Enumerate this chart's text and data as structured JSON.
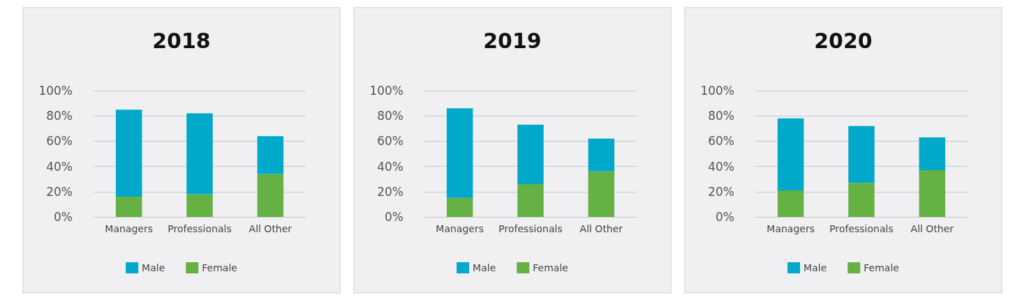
{
  "chart_data": [
    {
      "type": "bar",
      "title": "2018",
      "categories": [
        "Managers",
        "Professionals",
        "All Other"
      ],
      "stacked": true,
      "ylim": [
        0,
        100
      ],
      "yticks": [
        {
          "value": 0,
          "label": "0%"
        },
        {
          "value": 20,
          "label": "20%"
        },
        {
          "value": 40,
          "label": "40%"
        },
        {
          "value": 60,
          "label": "60%"
        },
        {
          "value": 80,
          "label": "80%"
        },
        {
          "value": 100,
          "label": "100%"
        }
      ],
      "grid": "y",
      "legend": "bottom",
      "series": [
        {
          "name": "Female",
          "color": "#65b144",
          "values": [
            16,
            18,
            34
          ]
        },
        {
          "name": "Male",
          "color": "#00a9c9",
          "values": [
            69,
            64,
            30
          ]
        }
      ]
    },
    {
      "type": "bar",
      "title": "2019",
      "categories": [
        "Managers",
        "Professionals",
        "All Other"
      ],
      "stacked": true,
      "ylim": [
        0,
        100
      ],
      "yticks": [
        {
          "value": 0,
          "label": "0%"
        },
        {
          "value": 20,
          "label": "20%"
        },
        {
          "value": 40,
          "label": "40%"
        },
        {
          "value": 60,
          "label": "60%"
        },
        {
          "value": 80,
          "label": "80%"
        },
        {
          "value": 100,
          "label": "100%"
        }
      ],
      "grid": "y",
      "legend": "bottom",
      "series": [
        {
          "name": "Female",
          "color": "#65b144",
          "values": [
            15,
            26,
            36
          ]
        },
        {
          "name": "Male",
          "color": "#00a9c9",
          "values": [
            71,
            47,
            26
          ]
        }
      ]
    },
    {
      "type": "bar",
      "title": "2020",
      "categories": [
        "Managers",
        "Professionals",
        "All Other"
      ],
      "stacked": true,
      "ylim": [
        0,
        100
      ],
      "yticks": [
        {
          "value": 0,
          "label": "0%"
        },
        {
          "value": 20,
          "label": "20%"
        },
        {
          "value": 40,
          "label": "40%"
        },
        {
          "value": 60,
          "label": "60%"
        },
        {
          "value": 80,
          "label": "80%"
        },
        {
          "value": 100,
          "label": "100%"
        }
      ],
      "grid": "y",
      "legend": "bottom",
      "series": [
        {
          "name": "Female",
          "color": "#65b144",
          "values": [
            21,
            27,
            37
          ]
        },
        {
          "name": "Male",
          "color": "#00a9c9",
          "values": [
            57,
            45,
            26
          ]
        }
      ]
    }
  ]
}
